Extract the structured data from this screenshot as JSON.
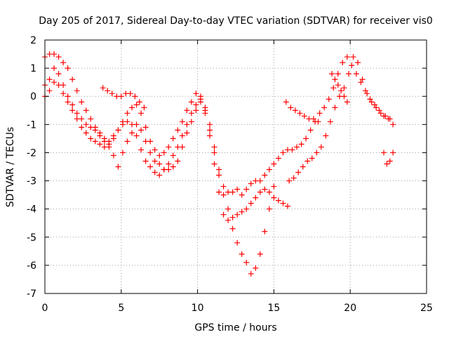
{
  "chart_data": {
    "type": "scatter",
    "title": "Day 205 of 2017, Sidereal Day-to-day VTEC variation (SDTVAR) for receiver vis0",
    "xlabel": "GPS time / hours",
    "ylabel": "SDTVAR / TECUs",
    "xlim": [
      0,
      25
    ],
    "ylim": [
      -7,
      2
    ],
    "xticks": [
      "0",
      "5",
      "10",
      "15",
      "20",
      "25"
    ],
    "yticks": [
      "-7",
      "-6",
      "-5",
      "-4",
      "-3",
      "-2",
      "-1",
      "0",
      "1",
      "2"
    ],
    "grid": true,
    "marker": "plus",
    "color": "#ff0000",
    "series": [
      {
        "x": [
          0.0,
          0.3,
          0.6,
          0.9,
          1.2,
          1.5,
          1.8,
          2.1,
          2.4,
          2.7,
          3.0,
          3.3,
          3.6,
          3.9,
          4.2,
          4.5,
          4.8,
          5.1,
          5.4,
          5.7,
          6.0,
          6.3,
          6.6,
          6.9,
          7.2,
          7.5,
          7.8,
          8.1,
          8.4,
          8.7,
          9.0,
          9.3,
          9.6,
          9.9,
          10.2,
          10.5,
          10.8,
          11.1,
          11.4,
          11.7,
          12.0,
          12.3,
          12.6,
          12.9,
          13.2,
          13.5,
          13.8,
          14.1,
          14.4,
          14.7,
          15.0,
          15.3,
          15.6,
          15.9,
          16.2,
          16.5,
          16.8,
          17.1,
          17.4,
          17.7,
          18.0,
          18.3,
          18.6,
          18.9,
          19.2,
          19.5,
          19.8,
          20.1,
          20.4,
          20.7,
          21.0,
          21.3,
          21.6,
          21.9,
          22.2,
          22.5,
          22.8
        ],
        "y": [
          0.4,
          0.6,
          1.0,
          0.8,
          0.4,
          0.0,
          -0.3,
          -0.6,
          -0.8,
          -1.0,
          -1.1,
          -1.2,
          -1.3,
          -1.5,
          -1.7,
          -1.5,
          -1.2,
          -0.9,
          -0.6,
          -0.4,
          -0.3,
          -0.6,
          -1.1,
          -1.6,
          -1.9,
          -2.1,
          -2.0,
          -1.8,
          -1.5,
          -1.2,
          -0.9,
          -0.5,
          -0.2,
          0.1,
          0.0,
          -0.4,
          -1.0,
          -1.8,
          -2.6,
          -3.2,
          -3.4,
          -3.4,
          -3.3,
          -3.5,
          -3.3,
          -3.1,
          -3.0,
          -3.0,
          -2.8,
          -2.6,
          -2.4,
          -2.2,
          -2.0,
          -1.9,
          -1.9,
          -1.8,
          -1.7,
          -1.5,
          -1.2,
          -0.9,
          -0.6,
          -0.4,
          -0.1,
          0.3,
          0.8,
          1.2,
          1.4,
          1.1,
          0.8,
          0.5,
          0.2,
          -0.1,
          -0.3,
          -0.5,
          -0.7,
          -0.8,
          -1.0
        ]
      },
      {
        "x": [
          0.0,
          0.3,
          0.6,
          0.9,
          1.2,
          1.5,
          1.8,
          2.1,
          2.4,
          2.7,
          3.0,
          3.3,
          3.6,
          3.9,
          4.2,
          4.5,
          4.8,
          5.1,
          5.4,
          5.7,
          6.0,
          6.3,
          6.6,
          6.9,
          7.2,
          7.5,
          7.8,
          8.1,
          8.4,
          8.7,
          9.0,
          9.3,
          9.6,
          9.9,
          10.2,
          10.5,
          10.8,
          11.1,
          11.4,
          11.7,
          12.0,
          12.3,
          12.6,
          12.9,
          13.2,
          13.5,
          13.8,
          14.1,
          14.4,
          14.7,
          15.0,
          15.3,
          15.6,
          15.9
        ],
        "y": [
          0.0,
          0.2,
          0.5,
          0.4,
          0.1,
          -0.2,
          -0.5,
          -0.8,
          -1.1,
          -1.3,
          -1.5,
          -1.6,
          -1.7,
          -1.8,
          -1.6,
          -1.4,
          -1.2,
          -1.0,
          -0.9,
          -1.0,
          -1.4,
          -1.9,
          -2.3,
          -2.5,
          -2.7,
          -2.8,
          -2.6,
          -2.4,
          -2.1,
          -1.8,
          -1.4,
          -1.0,
          -0.6,
          -0.3,
          -0.1,
          -0.5,
          -1.2,
          -2.0,
          -2.8,
          -3.5,
          -4.0,
          -4.3,
          -4.2,
          -4.1,
          -4.0,
          -3.8,
          -3.6,
          -3.4,
          -3.3,
          -3.4,
          -3.6,
          -3.7,
          -3.8,
          -3.9
        ]
      },
      {
        "x": [
          0.0,
          0.3,
          0.6,
          0.9,
          1.2,
          1.5,
          1.8,
          2.1,
          2.4,
          2.7,
          3.0,
          3.3,
          3.6,
          3.9,
          4.2,
          4.5,
          4.8,
          5.1,
          5.4,
          5.7,
          6.0,
          6.3,
          6.6,
          6.9,
          7.2,
          7.5,
          7.8,
          8.1,
          8.4,
          8.7,
          9.0,
          9.3,
          9.6,
          9.9,
          10.2,
          10.5,
          10.8,
          11.1,
          11.4,
          11.7,
          12.0,
          12.3,
          12.6,
          12.9,
          13.2,
          13.5,
          13.8,
          14.1,
          14.4,
          14.7,
          15.0
        ],
        "y": [
          1.4,
          1.5,
          1.5,
          1.4,
          1.2,
          1.0,
          0.6,
          0.2,
          -0.2,
          -0.5,
          -0.8,
          -1.1,
          -1.4,
          -1.6,
          -1.8,
          -2.1,
          -2.5,
          -2.0,
          -1.6,
          -1.3,
          -1.0,
          -1.2,
          -1.6,
          -2.0,
          -2.3,
          -2.4,
          -2.6,
          -2.6,
          -2.5,
          -2.3,
          -1.8,
          -1.3,
          -0.9,
          -0.5,
          -0.2,
          -0.6,
          -1.4,
          -2.4,
          -3.4,
          -4.2,
          -4.4,
          -4.7,
          -5.2,
          -5.6,
          -5.9,
          -6.3,
          -6.1,
          -5.6,
          -4.8,
          -4.0,
          -3.2
        ]
      },
      {
        "x": [
          3.8,
          4.1,
          4.4,
          4.7,
          5.0,
          5.3,
          5.6,
          5.9,
          6.2,
          6.5
        ],
        "y": [
          0.3,
          0.2,
          0.1,
          0.0,
          0.0,
          0.1,
          0.1,
          0.0,
          -0.2,
          -0.4
        ]
      },
      {
        "x": [
          15.8,
          16.1,
          16.4,
          16.7,
          17.0,
          17.3,
          17.6,
          17.9
        ],
        "y": [
          -0.2,
          -0.4,
          -0.5,
          -0.6,
          -0.7,
          -0.8,
          -0.8,
          -0.9
        ]
      },
      {
        "x": [
          16.0,
          16.3,
          16.6,
          16.9,
          17.2,
          17.5,
          17.8,
          18.1,
          18.4,
          18.7,
          19.0,
          19.3,
          19.6,
          19.9,
          20.2,
          20.5,
          20.8,
          21.1,
          21.4,
          21.7,
          22.0,
          22.3,
          22.6
        ],
        "y": [
          -3.0,
          -2.9,
          -2.7,
          -2.5,
          -2.3,
          -2.2,
          -2.0,
          -1.8,
          -1.4,
          -0.9,
          -0.4,
          0.0,
          0.3,
          0.8,
          1.4,
          1.2,
          0.6,
          0.1,
          -0.2,
          -0.4,
          -0.6,
          -0.7,
          -0.8
        ]
      },
      {
        "x": [
          18.8,
          19.0,
          19.2,
          19.4,
          19.6,
          19.8
        ],
        "y": [
          0.8,
          0.6,
          0.4,
          0.2,
          0.0,
          -0.2
        ]
      },
      {
        "x": [
          22.2,
          22.4,
          22.6,
          22.8
        ],
        "y": [
          -2.0,
          -2.4,
          -2.3,
          -2.0
        ]
      }
    ]
  }
}
